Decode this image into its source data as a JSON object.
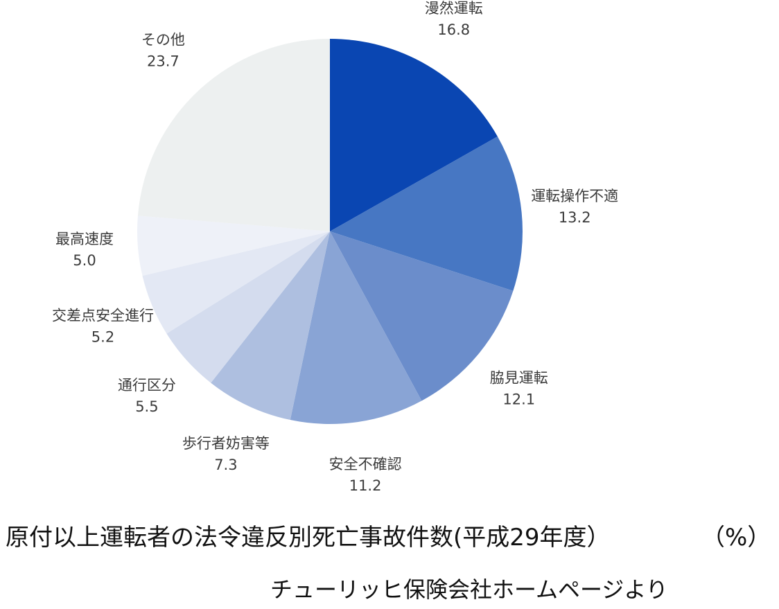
{
  "chart_data": {
    "type": "pie",
    "title": "",
    "start_angle_deg": 0,
    "direction": "clockwise",
    "slices": [
      {
        "label": "漫然運転",
        "value": 16.8,
        "value_label": "16.8",
        "color": "#0a46b2"
      },
      {
        "label": "運転操作不適",
        "value": 13.2,
        "value_label": "13.2",
        "color": "#4777c3"
      },
      {
        "label": "脇見運転",
        "value": 12.1,
        "value_label": "12.1",
        "color": "#6b8dcb"
      },
      {
        "label": "安全不確認",
        "value": 11.2,
        "value_label": "11.2",
        "color": "#89a4d5"
      },
      {
        "label": "歩行者妨害等",
        "value": 7.3,
        "value_label": "7.3",
        "color": "#aebfe0"
      },
      {
        "label": "通行区分",
        "value": 5.5,
        "value_label": "5.5",
        "color": "#d4dcee"
      },
      {
        "label": "交差点安全進行",
        "value": 5.2,
        "value_label": "5.2",
        "color": "#e3e8f4"
      },
      {
        "label": "最高速度",
        "value": 5.0,
        "value_label": "5.0",
        "color": "#eef1f8"
      },
      {
        "label": "その他",
        "value": 23.7,
        "value_label": "23.7",
        "color": "#edf0f0"
      }
    ]
  },
  "caption": "原付以上運転者の法令違反別死亡事故件数(平成29年度）",
  "unit": "（%）",
  "source": "チューリッヒ保険会社ホームページより"
}
